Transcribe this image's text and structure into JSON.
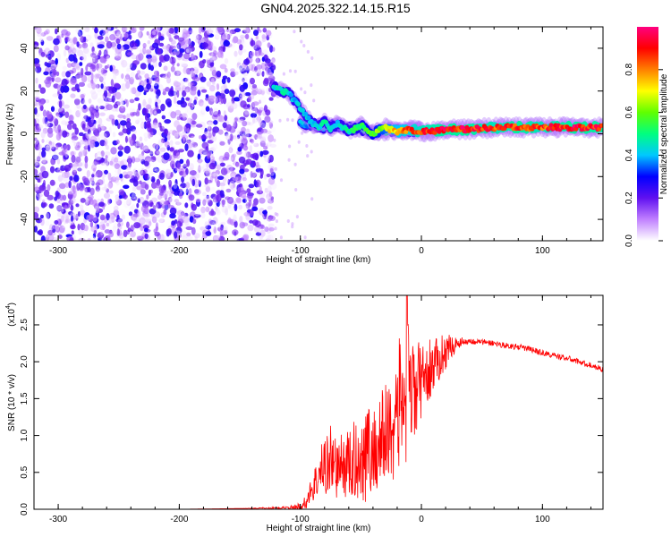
{
  "title": "GN04.2025.322.14.15.R15",
  "chart_data": [
    {
      "type": "heatmap",
      "xlabel": "Height of straight line (km)",
      "ylabel": "Frequency (Hz)",
      "xlim": [
        -320,
        150
      ],
      "ylim": [
        -50,
        50
      ],
      "x_ticks": [
        -300,
        -200,
        -100,
        0,
        100
      ],
      "y_ticks": [
        -40,
        -20,
        0,
        20,
        40
      ],
      "colorbar": {
        "label": "Normalized spectral amplitude",
        "range": [
          0.0,
          1.0
        ],
        "ticks": [
          0.0,
          0.2,
          0.4,
          0.6,
          0.8
        ],
        "colors": [
          "#ffffff",
          "#c080ff",
          "#6010f0",
          "#0000ff",
          "#00c8ff",
          "#00ff80",
          "#60ff00",
          "#ffff00",
          "#ff8000",
          "#ff0000",
          "#ff0080"
        ]
      },
      "noise_region": {
        "x_range": [
          -320,
          -122
        ],
        "y_range": [
          -50,
          50
        ]
      },
      "ridge": {
        "x": [
          -122,
          -115,
          -110,
          -105,
          -100,
          -95,
          -90,
          -85,
          -80,
          -75,
          -70,
          -60,
          -50,
          -40,
          -30,
          -20,
          -10,
          0,
          20,
          40,
          60,
          80,
          100,
          120,
          150
        ],
        "y": [
          22,
          20,
          19,
          16,
          12,
          8,
          5,
          3,
          6,
          2,
          5,
          1,
          4,
          0,
          3,
          1,
          2,
          1,
          2,
          2,
          3,
          3,
          3,
          3,
          3
        ],
        "intensity": [
          0.45,
          0.5,
          0.45,
          0.4,
          0.45,
          0.45,
          0.4,
          0.45,
          0.5,
          0.45,
          0.45,
          0.5,
          0.55,
          0.6,
          0.7,
          0.8,
          0.85,
          0.9,
          0.95,
          0.95,
          0.9,
          0.95,
          0.9,
          0.95,
          0.95
        ]
      },
      "secondary_ridge": {
        "x": [
          -100,
          -90,
          -80,
          -70,
          -60,
          -50,
          -40,
          -30,
          -20,
          -10,
          0
        ],
        "y": [
          5,
          4,
          3,
          4,
          3,
          2,
          1,
          1,
          2,
          1,
          2
        ],
        "intensity": [
          0.4,
          0.4,
          0.4,
          0.45,
          0.4,
          0.45,
          0.5,
          0.55,
          0.55,
          0.6,
          0.65
        ]
      }
    },
    {
      "type": "line",
      "xlabel": "Height of straight line (km)",
      "ylabel": "SNR (10 * v/v)",
      "y_multiplier": "(x10",
      "y_multiplier_exp": "4",
      "y_multiplier_close": ")",
      "xlim": [
        -320,
        150
      ],
      "ylim": [
        0,
        2.9
      ],
      "x_ticks": [
        -300,
        -200,
        -100,
        0,
        100
      ],
      "y_ticks": [
        0.0,
        0.5,
        1.0,
        1.5,
        2.0,
        2.5
      ],
      "color": "#ff0000",
      "series": [
        {
          "x": [
            -320,
            -300,
            -250,
            -200,
            -150,
            -110,
            -100,
            -95,
            -90,
            -85,
            -80,
            -75,
            -70,
            -65,
            -60,
            -55,
            -50,
            -45,
            -40,
            -35,
            -30,
            -25,
            -20,
            -15,
            -12,
            -10,
            -5,
            0,
            5,
            10,
            15,
            20,
            25,
            30,
            35,
            40,
            45,
            50,
            60,
            70,
            80,
            90,
            100,
            110,
            120,
            130,
            140,
            150
          ],
          "y": [
            0.0,
            0.0,
            0.0,
            0.0,
            0.01,
            0.02,
            0.04,
            0.1,
            0.3,
            0.45,
            0.6,
            0.7,
            0.55,
            0.6,
            0.6,
            0.65,
            0.7,
            0.8,
            0.75,
            0.9,
            1.0,
            1.1,
            1.35,
            1.55,
            1.6,
            1.55,
            1.6,
            1.75,
            1.85,
            1.95,
            2.05,
            2.15,
            2.2,
            2.25,
            2.28,
            2.28,
            2.27,
            2.27,
            2.25,
            2.22,
            2.2,
            2.17,
            2.12,
            2.08,
            2.05,
            2.0,
            1.95,
            1.9
          ],
          "noise_amp": [
            0,
            0,
            0,
            0,
            0,
            0.02,
            0.05,
            0.1,
            0.2,
            0.3,
            0.45,
            0.5,
            0.4,
            0.45,
            0.5,
            0.55,
            0.6,
            0.7,
            0.6,
            0.7,
            0.75,
            0.8,
            0.9,
            0.9,
            1.3,
            0.8,
            0.7,
            0.5,
            0.45,
            0.35,
            0.3,
            0.25,
            0.15,
            0.08,
            0.05,
            0.04,
            0.04,
            0.04,
            0.04,
            0.04,
            0.04,
            0.04,
            0.04,
            0.04,
            0.04,
            0.04,
            0.04,
            0.04
          ]
        }
      ]
    }
  ]
}
